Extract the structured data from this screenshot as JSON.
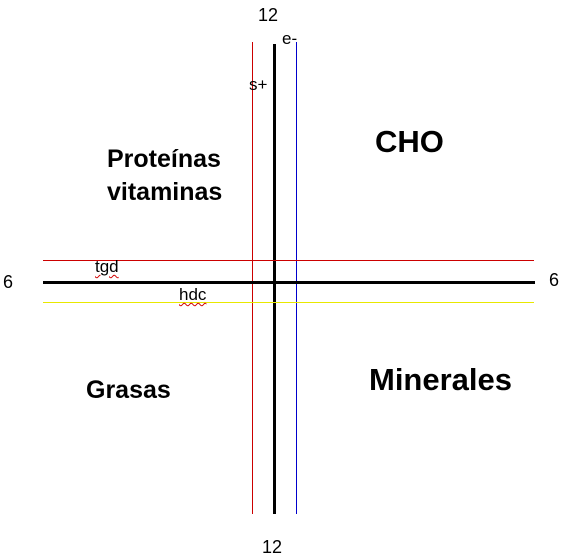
{
  "axis_labels": {
    "top": "12",
    "bottom": "12",
    "left": "6",
    "right": "6"
  },
  "markers": {
    "e_minus": "e-",
    "s_plus": "s+",
    "tgd": "tgd",
    "hdc": "hdc"
  },
  "quadrants": {
    "top_left": [
      "Proteínas",
      "vitaminas"
    ],
    "top_right": "CHO",
    "bottom_left": "Grasas",
    "bottom_right": "Minerales"
  },
  "colors": {
    "axis": "#000000",
    "red_line": "#cc0000",
    "blue_line": "#0000cc",
    "yellow_line": "#e8e800"
  }
}
